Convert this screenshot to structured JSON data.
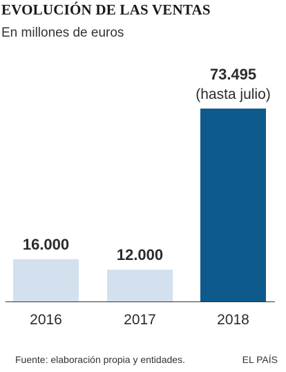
{
  "header": {
    "title": "EVOLUCIÓN DE LAS VENTAS",
    "subtitle": "En millones de euros"
  },
  "chart_data": {
    "type": "bar",
    "categories": [
      "2016",
      "2017",
      "2018"
    ],
    "values": [
      16000,
      12000,
      73495
    ],
    "value_labels": [
      "16.000",
      "12.000",
      "73.495"
    ],
    "annotations": [
      "",
      "",
      "(hasta julio)"
    ],
    "colors": [
      "#d3e0ee",
      "#d3e0ee",
      "#0f5a8c"
    ],
    "ylim": [
      0,
      80000
    ],
    "grid": false
  },
  "footer": {
    "source": "Fuente: elaboración propia y entidades.",
    "brand": "EL PAÍS"
  },
  "colors": {
    "axis": "#333333",
    "light_bar": "#d3e0ee",
    "dark_bar": "#0f5a8c"
  }
}
